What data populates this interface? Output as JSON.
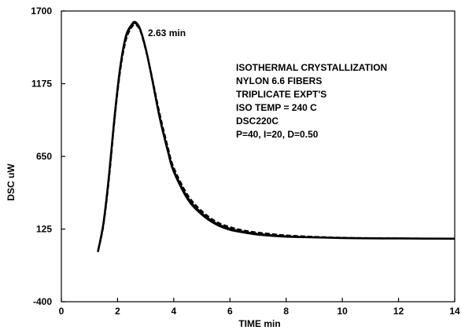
{
  "chart_data": {
    "type": "line",
    "xlabel": "TIME  min",
    "ylabel": "DSC  uW",
    "xlim": [
      0,
      14
    ],
    "ylim": [
      -400,
      1700
    ],
    "x_ticks": [
      0,
      2,
      4,
      6,
      8,
      10,
      12,
      14
    ],
    "y_ticks": [
      -400,
      125,
      650,
      1175,
      1700
    ],
    "grid": false,
    "legend": "none",
    "peak_label": "2.63  min",
    "notes": [
      "ISOTHERMAL  CRYSTALLIZATION",
      "NYLON  6.6  FIBERS",
      "TRIPLICATE  EXPT'S",
      "ISO  TEMP = 240  C",
      "DSC220C",
      "P=40,  I=20,  D=0.50"
    ],
    "series": [
      {
        "x": [
          1.3,
          1.5,
          1.7,
          1.9,
          2.1,
          2.3,
          2.5,
          2.63,
          2.8,
          3.0,
          3.2,
          3.5,
          3.8,
          4.0,
          4.5,
          5.0,
          5.5,
          6.0,
          6.5,
          7.0,
          8.0,
          9.0,
          10.0,
          11.0,
          12.0,
          13.0,
          14.0
        ],
        "values": [
          -40,
          170,
          520,
          950,
          1300,
          1520,
          1600,
          1620,
          1570,
          1430,
          1240,
          930,
          680,
          540,
          340,
          230,
          160,
          120,
          100,
          85,
          70,
          65,
          60,
          58,
          57,
          56,
          55
        ]
      },
      {
        "x": [
          1.3,
          1.5,
          1.7,
          1.9,
          2.1,
          2.3,
          2.5,
          2.63,
          2.8,
          3.0,
          3.2,
          3.5,
          3.8,
          4.0,
          4.5,
          5.0,
          5.5,
          6.0,
          6.5,
          7.0,
          8.0,
          9.0,
          10.0,
          11.0,
          12.0,
          13.0,
          14.0
        ],
        "values": [
          -40,
          150,
          490,
          920,
          1270,
          1490,
          1580,
          1600,
          1560,
          1420,
          1250,
          960,
          710,
          570,
          370,
          255,
          180,
          140,
          115,
          100,
          80,
          70,
          63,
          60,
          58,
          57,
          56
        ]
      },
      {
        "x": [
          1.3,
          1.5,
          1.7,
          1.9,
          2.1,
          2.3,
          2.5,
          2.63,
          2.8,
          3.0,
          3.2,
          3.5,
          3.8,
          4.0,
          4.5,
          5.0,
          5.5,
          6.0,
          6.5,
          7.0,
          8.0,
          9.0,
          10.0,
          11.0,
          12.0,
          13.0,
          14.0
        ],
        "values": [
          -40,
          160,
          505,
          935,
          1285,
          1505,
          1590,
          1610,
          1565,
          1425,
          1245,
          945,
          695,
          555,
          355,
          242,
          170,
          130,
          108,
          92,
          75,
          67,
          61,
          59,
          57,
          56,
          55
        ]
      }
    ]
  }
}
